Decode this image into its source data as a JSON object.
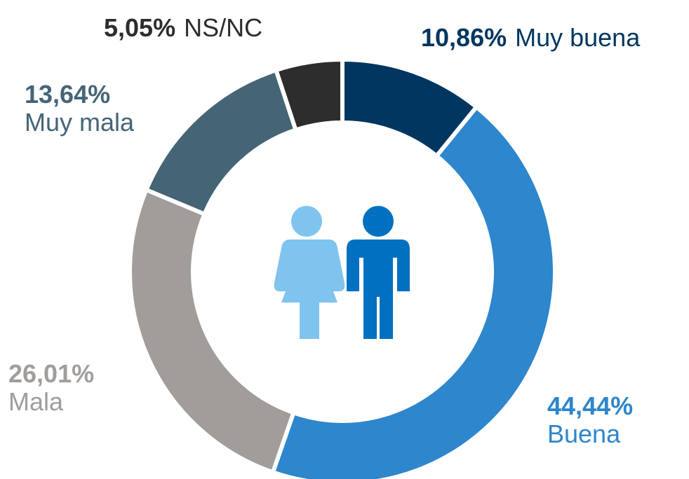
{
  "chart_data": {
    "type": "pie",
    "categories": [
      "Muy buena",
      "Buena",
      "Mala",
      "Muy mala",
      "NS/NC"
    ],
    "values": [
      10.86,
      44.44,
      26.01,
      13.64,
      5.05
    ],
    "value_labels": [
      "10,86%",
      "44,44%",
      "26,01%",
      "13,64%",
      "5,05%"
    ],
    "colors": [
      "#00365f",
      "#2e86cc",
      "#a09d9b",
      "#456577",
      "#2d2d2d"
    ]
  }
}
